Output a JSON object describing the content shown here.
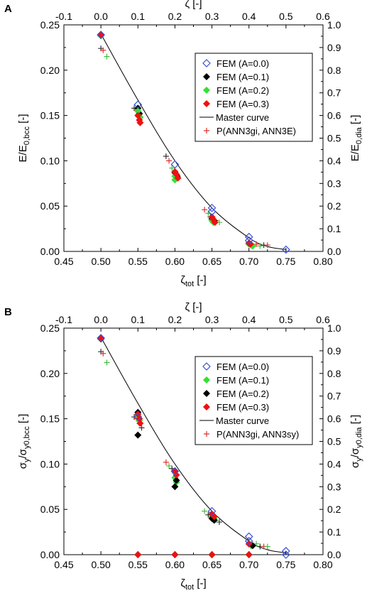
{
  "chart_data": [
    {
      "type": "scatter",
      "panel_label": "A",
      "x_bottom_label": "ζtot [-]",
      "x_top_label": "ζ [-]",
      "y_left_label": "E/E0,bcc [-]",
      "y_right_label": "E/E0,dia [-]",
      "xlim": [
        0.45,
        0.8
      ],
      "ylim": [
        0,
        0.25
      ],
      "x_ticks": [
        "0.45",
        "0.50",
        "0.55",
        "0.60",
        "0.65",
        "0.70",
        "0.75",
        "0.80"
      ],
      "x_top_ticks": [
        "-0.1",
        "0.0",
        "0.1",
        "0.2",
        "0.3",
        "0.4",
        "0.5",
        "0.6"
      ],
      "y_ticks": [
        "0.00",
        "0.05",
        "0.10",
        "0.15",
        "0.20",
        "0.25"
      ],
      "y_right_ticks": [
        "0.0",
        "0.1",
        "0.2",
        "0.3",
        "0.4",
        "0.5",
        "0.6",
        "0.7",
        "0.8",
        "0.9",
        "1.0"
      ],
      "legend_position": "top-right",
      "series": [
        {
          "name": "FEM (A=0.0)",
          "marker": "diamond-open",
          "color": "#3a4fd6",
          "points": [
            [
              0.5,
              0.239
            ],
            [
              0.55,
              0.162
            ],
            [
              0.6,
              0.096
            ],
            [
              0.65,
              0.048
            ],
            [
              0.65,
              0.044
            ],
            [
              0.7,
              0.016
            ],
            [
              0.7,
              0.012
            ],
            [
              0.75,
              0.002
            ]
          ]
        },
        {
          "name": "FEM (A=0.1)",
          "marker": "diamond",
          "color": "#000000",
          "points": [
            [
              0.5,
              0.238
            ],
            [
              0.55,
              0.158
            ],
            [
              0.552,
              0.152
            ],
            [
              0.6,
              0.087
            ],
            [
              0.603,
              0.083
            ],
            [
              0.65,
              0.036
            ],
            [
              0.653,
              0.034
            ],
            [
              0.7,
              0.009
            ],
            [
              0.702,
              0.008
            ]
          ]
        },
        {
          "name": "FEM (A=0.2)",
          "marker": "diamond",
          "color": "#33e033",
          "points": [
            [
              0.5,
              0.238
            ],
            [
              0.55,
              0.155
            ],
            [
              0.553,
              0.148
            ],
            [
              0.6,
              0.083
            ],
            [
              0.6,
              0.079
            ],
            [
              0.603,
              0.081
            ],
            [
              0.65,
              0.034
            ],
            [
              0.652,
              0.032
            ],
            [
              0.7,
              0.008
            ],
            [
              0.703,
              0.007
            ],
            [
              0.705,
              0.006
            ]
          ]
        },
        {
          "name": "FEM (A=0.3)",
          "marker": "diamond",
          "color": "#ee1111",
          "points": [
            [
              0.5,
              0.239
            ],
            [
              0.55,
              0.15
            ],
            [
              0.552,
              0.145
            ],
            [
              0.553,
              0.142
            ],
            [
              0.6,
              0.088
            ],
            [
              0.602,
              0.085
            ],
            [
              0.604,
              0.081
            ],
            [
              0.65,
              0.038
            ],
            [
              0.652,
              0.035
            ],
            [
              0.654,
              0.032
            ],
            [
              0.7,
              0.009
            ],
            [
              0.702,
              0.008
            ]
          ]
        },
        {
          "name": "Master curve",
          "marker": "line",
          "color": "#000000",
          "points": [
            [
              0.5,
              0.24
            ],
            [
              0.55,
              0.167
            ],
            [
              0.6,
              0.1
            ],
            [
              0.65,
              0.048
            ],
            [
              0.7,
              0.015
            ],
            [
              0.725,
              0.0055
            ],
            [
              0.75,
              0.002
            ]
          ]
        },
        {
          "name": "P(ANN3gi, ANN3E)",
          "marker": "plus",
          "color": "multi",
          "colors": [
            "#333333",
            "#e03030",
            "#40c040"
          ],
          "points": [
            [
              0.5,
              0.224
            ],
            [
              0.503,
              0.222
            ],
            [
              0.508,
              0.215
            ],
            [
              0.545,
              0.158
            ],
            [
              0.548,
              0.156
            ],
            [
              0.552,
              0.15
            ],
            [
              0.588,
              0.105
            ],
            [
              0.592,
              0.1
            ],
            [
              0.596,
              0.092
            ],
            [
              0.6,
              0.088
            ],
            [
              0.64,
              0.046
            ],
            [
              0.645,
              0.042
            ],
            [
              0.648,
              0.038
            ],
            [
              0.655,
              0.034
            ],
            [
              0.66,
              0.032
            ],
            [
              0.7,
              0.01
            ],
            [
              0.71,
              0.008
            ],
            [
              0.715,
              0.006
            ],
            [
              0.72,
              0.007
            ],
            [
              0.725,
              0.007
            ]
          ]
        }
      ]
    },
    {
      "type": "scatter",
      "panel_label": "B",
      "x_bottom_label": "ζtot [-]",
      "x_top_label": "ζ [-]",
      "y_left_label": "σy/σy0,bcc [-]",
      "y_right_label": "σy/σy0,dia [-]",
      "xlim": [
        0.45,
        0.8
      ],
      "ylim": [
        0,
        0.25
      ],
      "x_ticks": [
        "0.45",
        "0.50",
        "0.55",
        "0.60",
        "0.65",
        "0.70",
        "0.75",
        "0.80"
      ],
      "x_top_ticks": [
        "-0.1",
        "0.0",
        "0.1",
        "0.2",
        "0.3",
        "0.4",
        "0.5",
        "0.6"
      ],
      "y_ticks": [
        "0.00",
        "0.05",
        "0.10",
        "0.15",
        "0.20",
        "0.25"
      ],
      "y_right_ticks": [
        "0.0",
        "0.1",
        "0.2",
        "0.3",
        "0.4",
        "0.5",
        "0.6",
        "0.7",
        "0.8",
        "0.9",
        "1.0"
      ],
      "legend_position": "top-right",
      "series": [
        {
          "name": "FEM (A=0.0)",
          "marker": "diamond-open",
          "color": "#3a4fd6",
          "points": [
            [
              0.5,
              0.239
            ],
            [
              0.55,
              0.152
            ],
            [
              0.6,
              0.092
            ],
            [
              0.65,
              0.048
            ],
            [
              0.7,
              0.02
            ],
            [
              0.7,
              0.015
            ],
            [
              0.75,
              0.004
            ],
            [
              0.75,
              0.0
            ]
          ]
        },
        {
          "name": "FEM (A=0.1)",
          "marker": "diamond",
          "color": "#33e033",
          "points": [
            [
              0.5,
              0.238
            ],
            [
              0.55,
              0.153
            ],
            [
              0.552,
              0.148
            ],
            [
              0.6,
              0.085
            ],
            [
              0.602,
              0.08
            ],
            [
              0.65,
              0.042
            ],
            [
              0.653,
              0.04
            ],
            [
              0.7,
              0.012
            ],
            [
              0.703,
              0.01
            ],
            [
              0.55,
              0.0
            ],
            [
              0.6,
              0.0
            ],
            [
              0.65,
              0.0
            ],
            [
              0.7,
              0.0
            ]
          ]
        },
        {
          "name": "FEM (A=0.2)",
          "marker": "diamond",
          "color": "#000000",
          "points": [
            [
              0.5,
              0.238
            ],
            [
              0.55,
              0.157
            ],
            [
              0.55,
              0.132
            ],
            [
              0.6,
              0.075
            ],
            [
              0.602,
              0.082
            ],
            [
              0.65,
              0.04
            ],
            [
              0.653,
              0.038
            ],
            [
              0.705,
              0.01
            ],
            [
              0.55,
              0.0
            ],
            [
              0.6,
              0.0
            ],
            [
              0.65,
              0.0
            ],
            [
              0.7,
              0.0
            ]
          ]
        },
        {
          "name": "FEM (A=0.3)",
          "marker": "diamond",
          "color": "#ee1111",
          "points": [
            [
              0.5,
              0.239
            ],
            [
              0.55,
              0.155
            ],
            [
              0.552,
              0.15
            ],
            [
              0.553,
              0.145
            ],
            [
              0.6,
              0.092
            ],
            [
              0.602,
              0.088
            ],
            [
              0.65,
              0.045
            ],
            [
              0.653,
              0.042
            ],
            [
              0.7,
              0.012
            ],
            [
              0.55,
              0.0
            ],
            [
              0.6,
              0.0
            ],
            [
              0.65,
              0.0
            ],
            [
              0.7,
              0.0
            ]
          ]
        },
        {
          "name": "Master curve",
          "marker": "line",
          "color": "#000000",
          "points": [
            [
              0.5,
              0.24
            ],
            [
              0.55,
              0.167
            ],
            [
              0.6,
              0.1
            ],
            [
              0.65,
              0.048
            ],
            [
              0.7,
              0.015
            ],
            [
              0.725,
              0.0055
            ],
            [
              0.75,
              0.002
            ]
          ]
        },
        {
          "name": "P(ANN3gi, ANN3sy)",
          "marker": "plus",
          "color": "multi",
          "colors": [
            "#333333",
            "#e03030",
            "#40c040"
          ],
          "points": [
            [
              0.5,
              0.224
            ],
            [
              0.503,
              0.222
            ],
            [
              0.508,
              0.212
            ],
            [
              0.545,
              0.152
            ],
            [
              0.548,
              0.15
            ],
            [
              0.552,
              0.145
            ],
            [
              0.555,
              0.14
            ],
            [
              0.588,
              0.102
            ],
            [
              0.592,
              0.098
            ],
            [
              0.596,
              0.095
            ],
            [
              0.6,
              0.09
            ],
            [
              0.64,
              0.048
            ],
            [
              0.645,
              0.044
            ],
            [
              0.65,
              0.04
            ],
            [
              0.655,
              0.038
            ],
            [
              0.66,
              0.036
            ],
            [
              0.7,
              0.014
            ],
            [
              0.71,
              0.012
            ],
            [
              0.715,
              0.009
            ],
            [
              0.72,
              0.009
            ],
            [
              0.725,
              0.009
            ]
          ]
        }
      ]
    }
  ]
}
